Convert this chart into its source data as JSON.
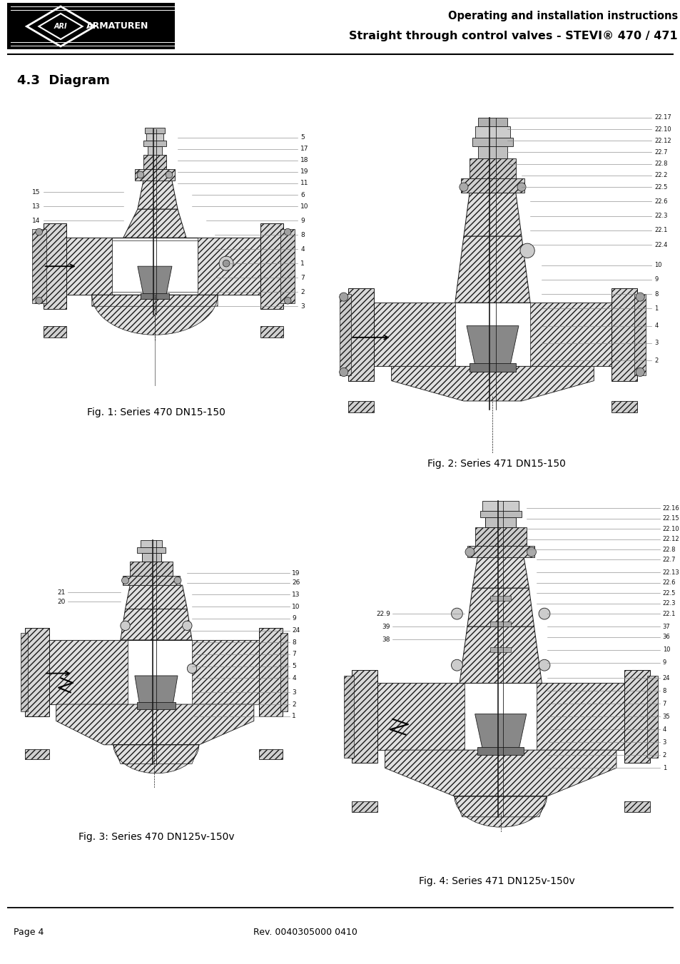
{
  "page_title_line1": "Operating and installation instructions",
  "page_title_line2": "Straight through control valves - STEVI® 470 / 471",
  "section_title": "4.3  Diagram",
  "fig1_caption": "Fig. 1: Series 470 DN15-150",
  "fig2_caption": "Fig. 2: Series 471 DN15-150",
  "fig3_caption": "Fig. 3: Series 470 DN125v-150v",
  "fig4_caption": "Fig. 4: Series 471 DN125v-150v",
  "footer_left": "Page 4",
  "footer_center": "Rev. 0040305000 0410",
  "bg_color": "#ffffff",
  "header_bg": "#000000",
  "lc": "#1a1a1a",
  "hatch_fc": "#d8d8d8",
  "fig1_labels_right": [
    "5",
    "17",
    "18",
    "19",
    "11",
    "6",
    "10",
    "9",
    "8",
    "4",
    "1",
    "7",
    "2",
    "3"
  ],
  "fig1_labels_left": [
    "15",
    "13",
    "14"
  ],
  "fig2_labels_right": [
    "22.17",
    "22.10",
    "22.12",
    "22.7",
    "22.8",
    "22.2",
    "22.5",
    "22.6",
    "22.3",
    "22.1",
    "22.4",
    "10",
    "9",
    "8",
    "1",
    "4",
    "3",
    "2"
  ],
  "fig3_labels_right": [
    "19",
    "26",
    "13",
    "10",
    "9",
    "24",
    "8",
    "7",
    "5",
    "4",
    "3",
    "2",
    "1"
  ],
  "fig3_labels_left": [
    "21",
    "20"
  ],
  "fig4_labels_right": [
    "22.16",
    "22.15",
    "22.10",
    "22.12",
    "22.8",
    "22.7",
    "22.13",
    "22.6",
    "22.5",
    "22.3",
    "22.1",
    "37",
    "36",
    "10",
    "9",
    "24",
    "8",
    "7",
    "35",
    "4",
    "3",
    "2",
    "1"
  ],
  "fig4_labels_left": [
    "22.9",
    "39",
    "38"
  ],
  "header_font_size": 11,
  "section_font_size": 13,
  "caption_font_size": 10,
  "footer_font_size": 9,
  "label_fontsize": 6.5
}
